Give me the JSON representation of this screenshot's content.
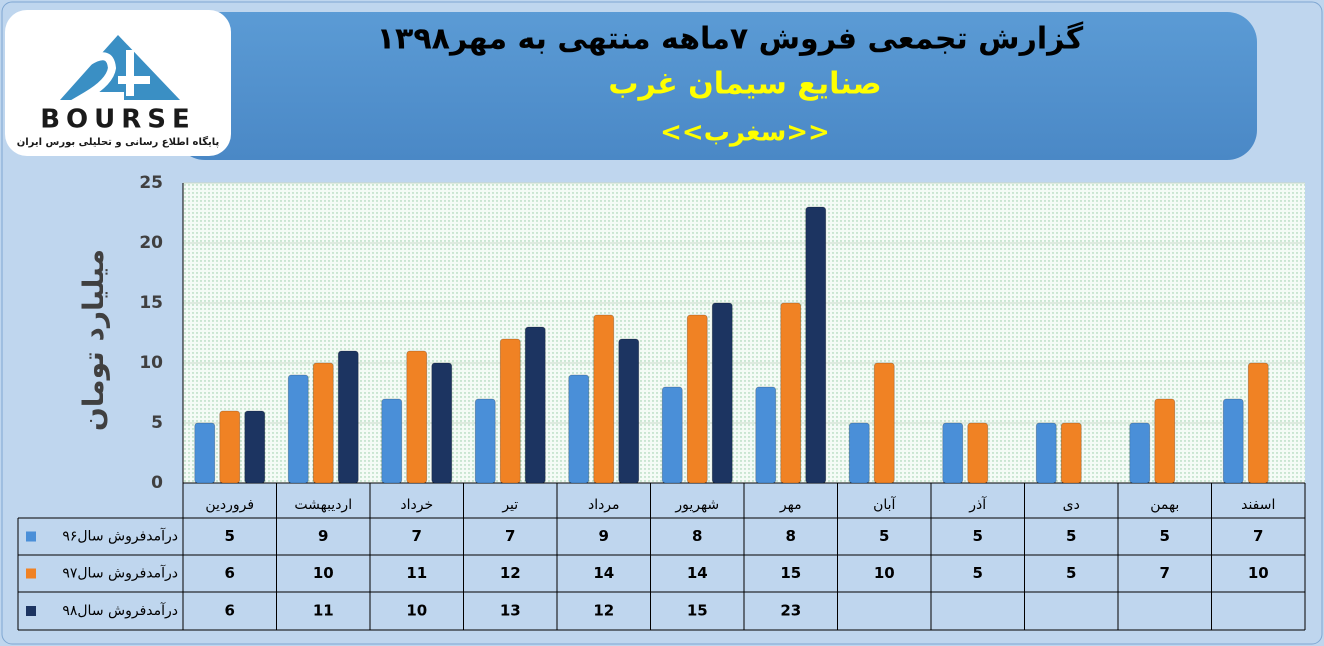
{
  "logo": {
    "name": "BOURSE",
    "tagline": "پایگاه اطلاع رسانی و تحلیلی بورس ایران"
  },
  "chart_data": {
    "type": "bar",
    "title": "گزارش تجمعی فروش ۷ماهه منتهی به مهر۱۳۹۸",
    "subtitle": "صنایع سیمان غرب",
    "symbol": "<<سغرب>>",
    "y_label": "میلیارد تومان",
    "categories": [
      "فروردین",
      "اردیبهشت",
      "خرداد",
      "تیر",
      "مرداد",
      "شهریور",
      "مهر",
      "آبان",
      "آذر",
      "دی",
      "بهمن",
      "اسفند"
    ],
    "series": [
      {
        "name": "درآمدفروش سال۹۶",
        "color": "#4a8fd8",
        "values": [
          5,
          9,
          7,
          7,
          9,
          8,
          8,
          5,
          5,
          5,
          5,
          7
        ]
      },
      {
        "name": "درآمدفروش سال۹۷",
        "color": "#f08224",
        "values": [
          6,
          10,
          11,
          12,
          14,
          14,
          15,
          10,
          5,
          5,
          7,
          10
        ]
      },
      {
        "name": "درآمدفروش سال۹۸",
        "color": "#1c3461",
        "values": [
          6,
          11,
          10,
          13,
          12,
          15,
          23,
          null,
          null,
          null,
          null,
          null
        ]
      }
    ],
    "ylim": [
      0,
      25
    ],
    "yticks": [
      0,
      5,
      10,
      15,
      20,
      25
    ],
    "grid": true
  }
}
